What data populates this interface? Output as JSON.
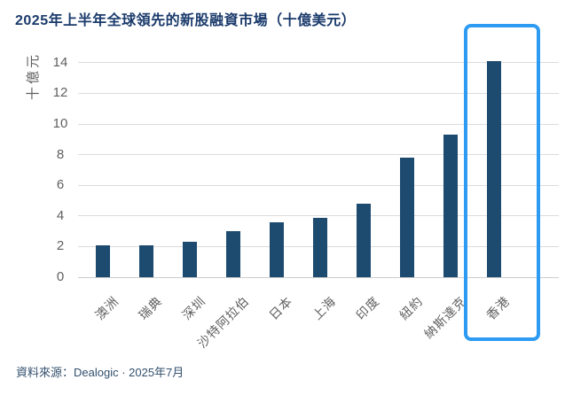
{
  "page": {
    "title": "2025年上半年全球領先的新股融資市場（十億美元）",
    "source_note": "資料來源：Dealogic · 2025年7月"
  },
  "chart_data": {
    "type": "bar",
    "title": "2025年上半年全球領先的新股融資市場（十億美元）",
    "categories": [
      "澳洲",
      "瑞典",
      "深圳",
      "沙特阿拉伯",
      "日本",
      "上海",
      "印度",
      "紐約",
      "納斯達克",
      "香港"
    ],
    "values": [
      2.1,
      2.1,
      2.3,
      3.0,
      3.6,
      3.9,
      4.8,
      7.8,
      9.3,
      14.1
    ],
    "ylabel": "十億元",
    "xlabel": "",
    "ylim": [
      0,
      14
    ],
    "yticks": [
      0,
      2,
      4,
      6,
      8,
      10,
      12,
      14
    ],
    "grid": true,
    "legend": "none",
    "x_tick_rotation_deg": 45,
    "highlighted_category": "香港",
    "colors": {
      "bar": "#1d4a6f",
      "highlight_box": "#2e9bf2",
      "title": "#1a3a6b",
      "axis_text": "#5f5f5f",
      "gridline": "#dcdcdc",
      "baseline": "#cccccc",
      "source_text": "#33506e"
    }
  }
}
